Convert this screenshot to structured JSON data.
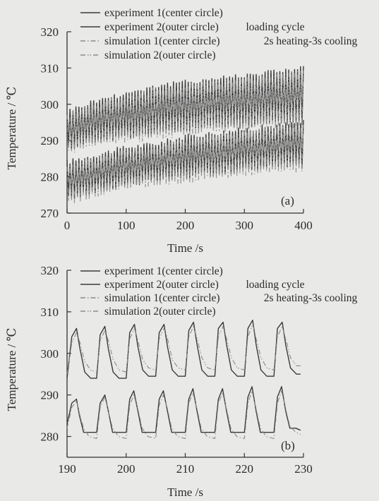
{
  "chart_data": [
    {
      "type": "line",
      "panel_label": "(a)",
      "xlabel": "Time /s",
      "ylabel": "Temperature / ℃",
      "xlim": [
        0,
        400
      ],
      "ylim": [
        270,
        320
      ],
      "xticks": [
        0,
        100,
        200,
        300,
        400
      ],
      "yticks": [
        270,
        280,
        290,
        300,
        310,
        320
      ],
      "legend_note": [
        "loading cycle",
        "2s heating-3s cooling"
      ],
      "legend_position": "top-left",
      "series": [
        {
          "name": "experiment 1(center circle)",
          "color": "#3a3a3a",
          "style": "solid",
          "band": "lower",
          "x": [
            0,
            50,
            100,
            150,
            200,
            250,
            300,
            350,
            400
          ],
          "min": [
            274,
            276,
            278,
            279,
            280,
            281,
            282,
            283,
            283
          ],
          "max": [
            284,
            286,
            288,
            289,
            291,
            292,
            293,
            294,
            295
          ]
        },
        {
          "name": "experiment 2(outer circle)",
          "color": "#3a3a3a",
          "style": "solid",
          "band": "upper",
          "x": [
            0,
            50,
            100,
            150,
            200,
            250,
            300,
            350,
            400
          ],
          "min": [
            288,
            290,
            291,
            292,
            293,
            294,
            294,
            295,
            295
          ],
          "max": [
            298,
            301,
            303,
            305,
            306,
            307,
            308,
            309,
            310
          ]
        },
        {
          "name": "simulation 1(center circle)",
          "color": "#8a8a8a",
          "style": "dashdot",
          "band": "lower",
          "x": [
            0,
            50,
            100,
            150,
            200,
            250,
            300,
            350,
            400
          ],
          "min": [
            273,
            275,
            277,
            278,
            279,
            280,
            281,
            282,
            282
          ],
          "max": [
            283,
            285,
            287,
            288,
            290,
            291,
            292,
            293,
            294
          ]
        },
        {
          "name": "simulation 2(outer circle)",
          "color": "#8a8a8a",
          "style": "dashdotdot",
          "band": "upper",
          "x": [
            0,
            50,
            100,
            150,
            200,
            250,
            300,
            350,
            400
          ],
          "min": [
            287,
            289,
            290,
            291,
            292,
            293,
            293,
            294,
            294
          ],
          "max": [
            297,
            300,
            302,
            304,
            305,
            306,
            307,
            308,
            309
          ]
        }
      ]
    },
    {
      "type": "line",
      "panel_label": "(b)",
      "xlabel": "Time /s",
      "ylabel": "Temperature / ℃",
      "xlim": [
        190,
        230
      ],
      "ylim": [
        275,
        320
      ],
      "xticks": [
        190,
        200,
        210,
        220,
        230
      ],
      "yticks": [
        280,
        290,
        300,
        310,
        320
      ],
      "legend_note": [
        "loading cycle",
        "2s heating-3s cooling"
      ],
      "legend_position": "top-left",
      "series": [
        {
          "name": "experiment 1(center circle)",
          "color": "#3a3a3a",
          "style": "solid",
          "band": "lower",
          "x": [
            190,
            190.8,
            191.6,
            192.1,
            192.8,
            193.7,
            195.0,
            195.6,
            196.4,
            197.0,
            197.7,
            198.7,
            200.0,
            200.6,
            201.3,
            202.0,
            202.7,
            203.7,
            205.0,
            205.6,
            206.3,
            207.0,
            207.7,
            208.7,
            210.0,
            210.6,
            211.3,
            212.0,
            212.7,
            213.7,
            215.0,
            215.6,
            216.3,
            217.0,
            217.7,
            218.7,
            220.0,
            220.6,
            221.3,
            222.0,
            222.7,
            223.7,
            225.0,
            225.6,
            226.3,
            227.0,
            227.7,
            228.7,
            229.5
          ],
          "y": [
            283.0,
            288.0,
            289.0,
            285.0,
            281.0,
            281.0,
            281.0,
            288.0,
            290.0,
            286.0,
            281.0,
            281.0,
            281.0,
            289.0,
            291.0,
            286.0,
            281.0,
            281.0,
            281.0,
            289.0,
            291.0,
            286.0,
            281.0,
            281.0,
            281.0,
            289.0,
            291.5,
            286.0,
            281.0,
            281.0,
            281.0,
            289.0,
            291.5,
            286.0,
            281.0,
            281.0,
            281.0,
            289.5,
            292.0,
            286.0,
            281.0,
            281.0,
            281.0,
            289.5,
            292.0,
            286.0,
            282.0,
            282.0,
            281.5
          ]
        },
        {
          "name": "experiment 2(outer circle)",
          "color": "#3a3a3a",
          "style": "solid",
          "band": "upper",
          "x": [
            190,
            190.8,
            191.6,
            192.2,
            193.0,
            194.0,
            195.0,
            195.6,
            196.4,
            197.0,
            197.8,
            198.8,
            200.0,
            200.6,
            201.4,
            202.0,
            202.8,
            203.8,
            205.0,
            205.6,
            206.4,
            207.0,
            207.8,
            208.8,
            210.0,
            210.6,
            211.4,
            212.0,
            212.8,
            213.8,
            215.0,
            215.6,
            216.4,
            217.0,
            217.8,
            218.8,
            220.0,
            220.6,
            221.4,
            222.0,
            222.8,
            223.8,
            225.0,
            225.6,
            226.4,
            227.0,
            227.8,
            228.8,
            229.5
          ],
          "y": [
            294.0,
            304.0,
            306.0,
            301.0,
            295.5,
            294.0,
            294.0,
            304.5,
            306.5,
            301.0,
            295.5,
            294.0,
            294.0,
            305.0,
            307.0,
            301.5,
            296.0,
            294.5,
            294.5,
            305.0,
            307.0,
            301.5,
            296.0,
            294.5,
            294.5,
            305.5,
            307.5,
            302.0,
            296.0,
            294.5,
            294.5,
            306.0,
            307.5,
            302.0,
            296.0,
            294.5,
            294.5,
            306.0,
            308.0,
            302.0,
            296.0,
            294.5,
            294.5,
            306.0,
            307.5,
            302.0,
            296.5,
            295.0,
            295.0
          ]
        },
        {
          "name": "simulation 1(center circle)",
          "color": "#8a8a8a",
          "style": "dashdot",
          "band": "lower",
          "x": [
            190,
            190.8,
            191.6,
            192.1,
            192.8,
            193.7,
            195.0,
            195.6,
            196.4,
            197.0,
            197.7,
            198.7,
            200.0,
            200.6,
            201.3,
            202.0,
            202.7,
            203.7,
            205.0,
            205.6,
            206.3,
            207.0,
            207.7,
            208.7,
            210.0,
            210.6,
            211.3,
            212.0,
            212.7,
            213.7,
            215.0,
            215.6,
            216.3,
            217.0,
            217.7,
            218.7,
            220.0,
            220.6,
            221.3,
            222.0,
            222.7,
            223.7,
            225.0,
            225.6,
            226.3,
            227.0,
            227.7,
            228.7,
            229.5
          ],
          "y": [
            282.0,
            287.0,
            288.5,
            285.5,
            282.0,
            280.0,
            279.5,
            287.0,
            289.5,
            286.0,
            282.0,
            280.0,
            279.5,
            287.5,
            290.0,
            286.5,
            282.0,
            280.0,
            279.5,
            287.5,
            290.0,
            286.5,
            282.0,
            280.0,
            279.5,
            288.0,
            290.5,
            286.5,
            282.0,
            280.0,
            279.5,
            288.0,
            290.5,
            286.5,
            282.0,
            280.0,
            279.5,
            288.0,
            291.0,
            286.5,
            282.0,
            280.0,
            279.5,
            288.0,
            291.0,
            286.5,
            282.5,
            281.0,
            280.5
          ]
        },
        {
          "name": "simulation 2(outer circle)",
          "color": "#8a8a8a",
          "style": "dashdotdot",
          "band": "upper",
          "x": [
            190,
            190.8,
            191.6,
            192.2,
            193.0,
            194.0,
            195.0,
            195.6,
            196.4,
            197.0,
            197.8,
            198.8,
            200.0,
            200.6,
            201.4,
            202.0,
            202.8,
            203.8,
            205.0,
            205.6,
            206.4,
            207.0,
            207.8,
            208.8,
            210.0,
            210.6,
            211.4,
            212.0,
            212.8,
            213.8,
            215.0,
            215.6,
            216.4,
            217.0,
            217.8,
            218.8,
            220.0,
            220.6,
            221.4,
            222.0,
            222.8,
            223.8,
            225.0,
            225.6,
            226.4,
            227.0,
            227.8,
            228.8,
            229.5
          ],
          "y": [
            295.0,
            302.5,
            305.0,
            302.5,
            298.0,
            296.0,
            295.5,
            303.0,
            305.5,
            303.0,
            298.5,
            296.0,
            295.5,
            303.5,
            306.0,
            303.0,
            298.5,
            296.5,
            296.0,
            303.5,
            306.0,
            303.5,
            298.5,
            296.5,
            296.0,
            304.0,
            306.5,
            303.5,
            299.0,
            296.5,
            296.0,
            304.0,
            306.5,
            303.5,
            299.0,
            296.5,
            296.0,
            304.0,
            307.0,
            303.5,
            299.0,
            296.5,
            296.0,
            304.0,
            306.5,
            303.5,
            299.0,
            297.0,
            297.0
          ]
        }
      ]
    }
  ]
}
